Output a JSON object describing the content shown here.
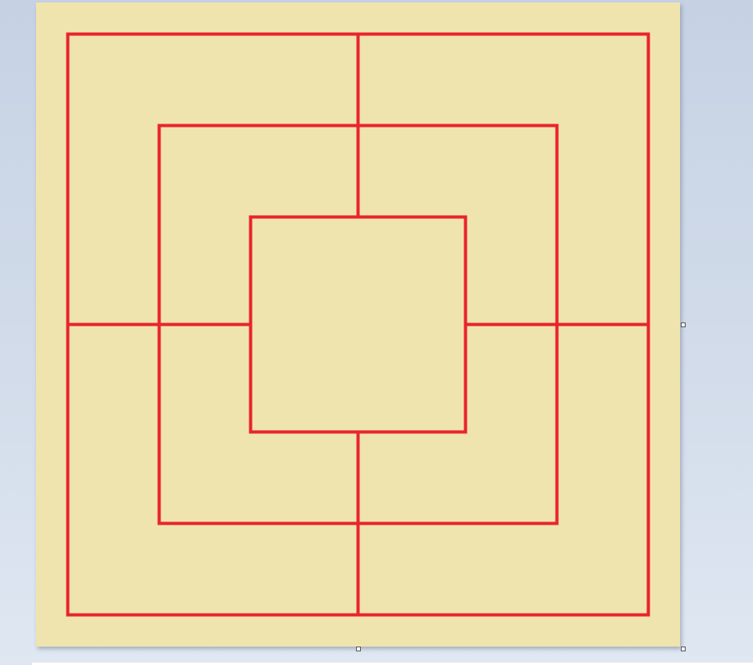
{
  "board": {
    "name": "nine-mens-morris",
    "background_color": "#f0e4ae",
    "line_color": "#e8252a",
    "rings": [
      "outer",
      "middle",
      "inner"
    ],
    "connectors": [
      "top",
      "right",
      "bottom",
      "left"
    ]
  },
  "selection": {
    "handles": [
      "right-mid",
      "bottom-mid",
      "bottom-right"
    ]
  }
}
